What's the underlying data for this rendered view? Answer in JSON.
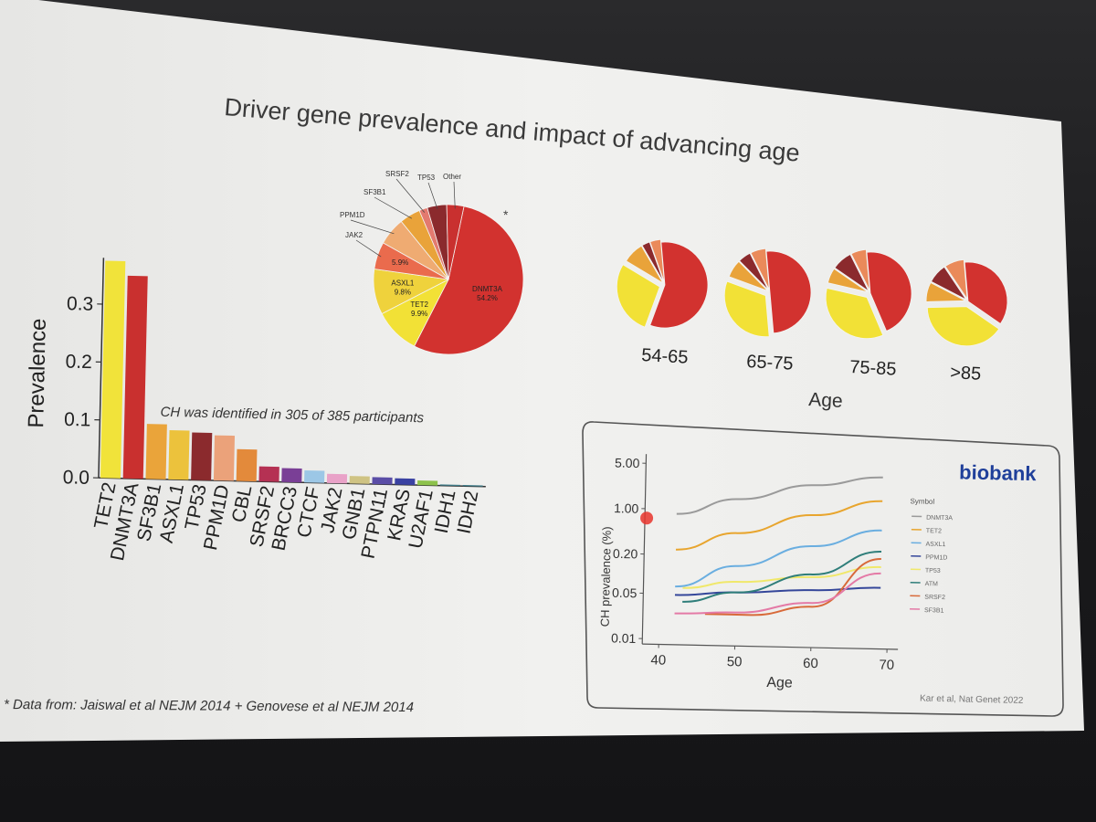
{
  "slide": {
    "title": "Driver gene prevalence and impact of advancing age",
    "footnote": "* Data from: Jaiswal et al NEJM 2014 + Genovese et al NEJM 2014",
    "pie_asterisk": "*",
    "colors": {
      "slide_bg": "#ededeb",
      "room_bg": "#1c1c1e"
    }
  },
  "chart_data": [
    {
      "type": "bar",
      "ylabel": "Prevalence",
      "ylim": [
        0,
        0.38
      ],
      "yticks": [
        "0.0",
        "0.1",
        "0.2",
        "0.3"
      ],
      "annotation": "CH was identified in 305 of 385 participants",
      "categories": [
        "TET2",
        "DNMT3A",
        "SF3B1",
        "ASXL1",
        "TP53",
        "PPM1D",
        "CBL",
        "SRSF2",
        "BRCC3",
        "CTCF",
        "JAK2",
        "GNB1",
        "PTPN11",
        "KRAS",
        "U2AF1",
        "IDH1",
        "IDH2"
      ],
      "values": [
        0.375,
        0.35,
        0.095,
        0.085,
        0.082,
        0.078,
        0.055,
        0.026,
        0.024,
        0.021,
        0.016,
        0.013,
        0.012,
        0.011,
        0.008,
        0.002,
        0.002
      ],
      "colors": [
        "#f1e33a",
        "#c9302f",
        "#eaa43a",
        "#ecc23c",
        "#8b2a2d",
        "#eba27a",
        "#e38a3b",
        "#b53153",
        "#7a3f96",
        "#9cc7e6",
        "#e9a2c8",
        "#cfc383",
        "#5a4da6",
        "#3a42a2",
        "#8dc24b",
        "#3e7c89",
        "#3e7c89"
      ]
    },
    {
      "type": "pie",
      "labels": [
        "DNMT3A",
        "TET2",
        "ASXL1",
        "JAK2",
        "PPM1D",
        "SF3B1",
        "SRSF2",
        "TP53",
        "Other"
      ],
      "values": [
        54.2,
        9.9,
        9.8,
        5.9,
        6.0,
        4.5,
        1.8,
        4.2,
        3.7
      ],
      "value_labels": [
        "54.2%",
        "9.9%",
        "9.8%",
        "5.9%",
        "",
        "",
        "",
        "",
        ""
      ],
      "colors": [
        "#d2322f",
        "#f2e136",
        "#efd23c",
        "#ea6b4d",
        "#efab72",
        "#e9a33a",
        "#e37a6f",
        "#8b2a2d",
        "#c9302f"
      ]
    },
    {
      "type": "pie",
      "xlabel": "Age",
      "groups": [
        {
          "label": "54-65",
          "values": [
            57,
            28,
            8,
            3,
            4
          ]
        },
        {
          "label": "65-75",
          "values": [
            50,
            32,
            7,
            5,
            6
          ]
        },
        {
          "label": "75-85",
          "values": [
            45,
            35,
            6,
            8,
            6
          ]
        },
        {
          "label": ">85",
          "values": [
            36,
            40,
            8,
            8,
            8
          ]
        }
      ],
      "colors": [
        "#d2322f",
        "#f2e136",
        "#e9a33a",
        "#8b2a2d",
        "#ea8a5a"
      ]
    },
    {
      "type": "line",
      "logo": "biobank",
      "logo_tagline": "",
      "xlabel": "Age",
      "ylabel": "CH prevalence (%)",
      "xlim": [
        40,
        70
      ],
      "xticks": [
        "40",
        "50",
        "60",
        "70"
      ],
      "yscale": "log",
      "ylim": [
        0.01,
        5
      ],
      "yticks": [
        "5.00",
        "1.00",
        "0.20",
        "0.05",
        "0.01"
      ],
      "legend_title": "Symbol",
      "citation": "Kar et al, Nat Genet 2022",
      "series": [
        {
          "name": "DNMT3A",
          "color": "#9a9a9a",
          "x": [
            42,
            50,
            60,
            69
          ],
          "y": [
            0.85,
            1.5,
            2.6,
            3.6
          ]
        },
        {
          "name": "TET2",
          "color": "#e8a52e",
          "x": [
            42,
            50,
            60,
            69
          ],
          "y": [
            0.24,
            0.45,
            0.9,
            1.55
          ]
        },
        {
          "name": "ASXL1",
          "color": "#6aaee0",
          "x": [
            42,
            50,
            60,
            69
          ],
          "y": [
            0.065,
            0.14,
            0.3,
            0.55
          ]
        },
        {
          "name": "PPM1D",
          "color": "#35479a",
          "x": [
            42,
            50,
            60,
            69
          ],
          "y": [
            0.048,
            0.055,
            0.063,
            0.072
          ]
        },
        {
          "name": "TP53",
          "color": "#f0e86a",
          "x": [
            43,
            50,
            60,
            69
          ],
          "y": [
            0.062,
            0.08,
            0.1,
            0.15
          ]
        },
        {
          "name": "ATM",
          "color": "#2f7e7a",
          "x": [
            43,
            50,
            60,
            69
          ],
          "y": [
            0.038,
            0.055,
            0.11,
            0.26
          ]
        },
        {
          "name": "SRSF2",
          "color": "#d86a3a",
          "x": [
            46,
            52,
            60,
            69
          ],
          "y": [
            0.025,
            0.025,
            0.035,
            0.2
          ]
        },
        {
          "name": "SF3B1",
          "color": "#e47aa6",
          "x": [
            42,
            50,
            60,
            69
          ],
          "y": [
            0.025,
            0.027,
            0.04,
            0.12
          ]
        }
      ]
    }
  ]
}
